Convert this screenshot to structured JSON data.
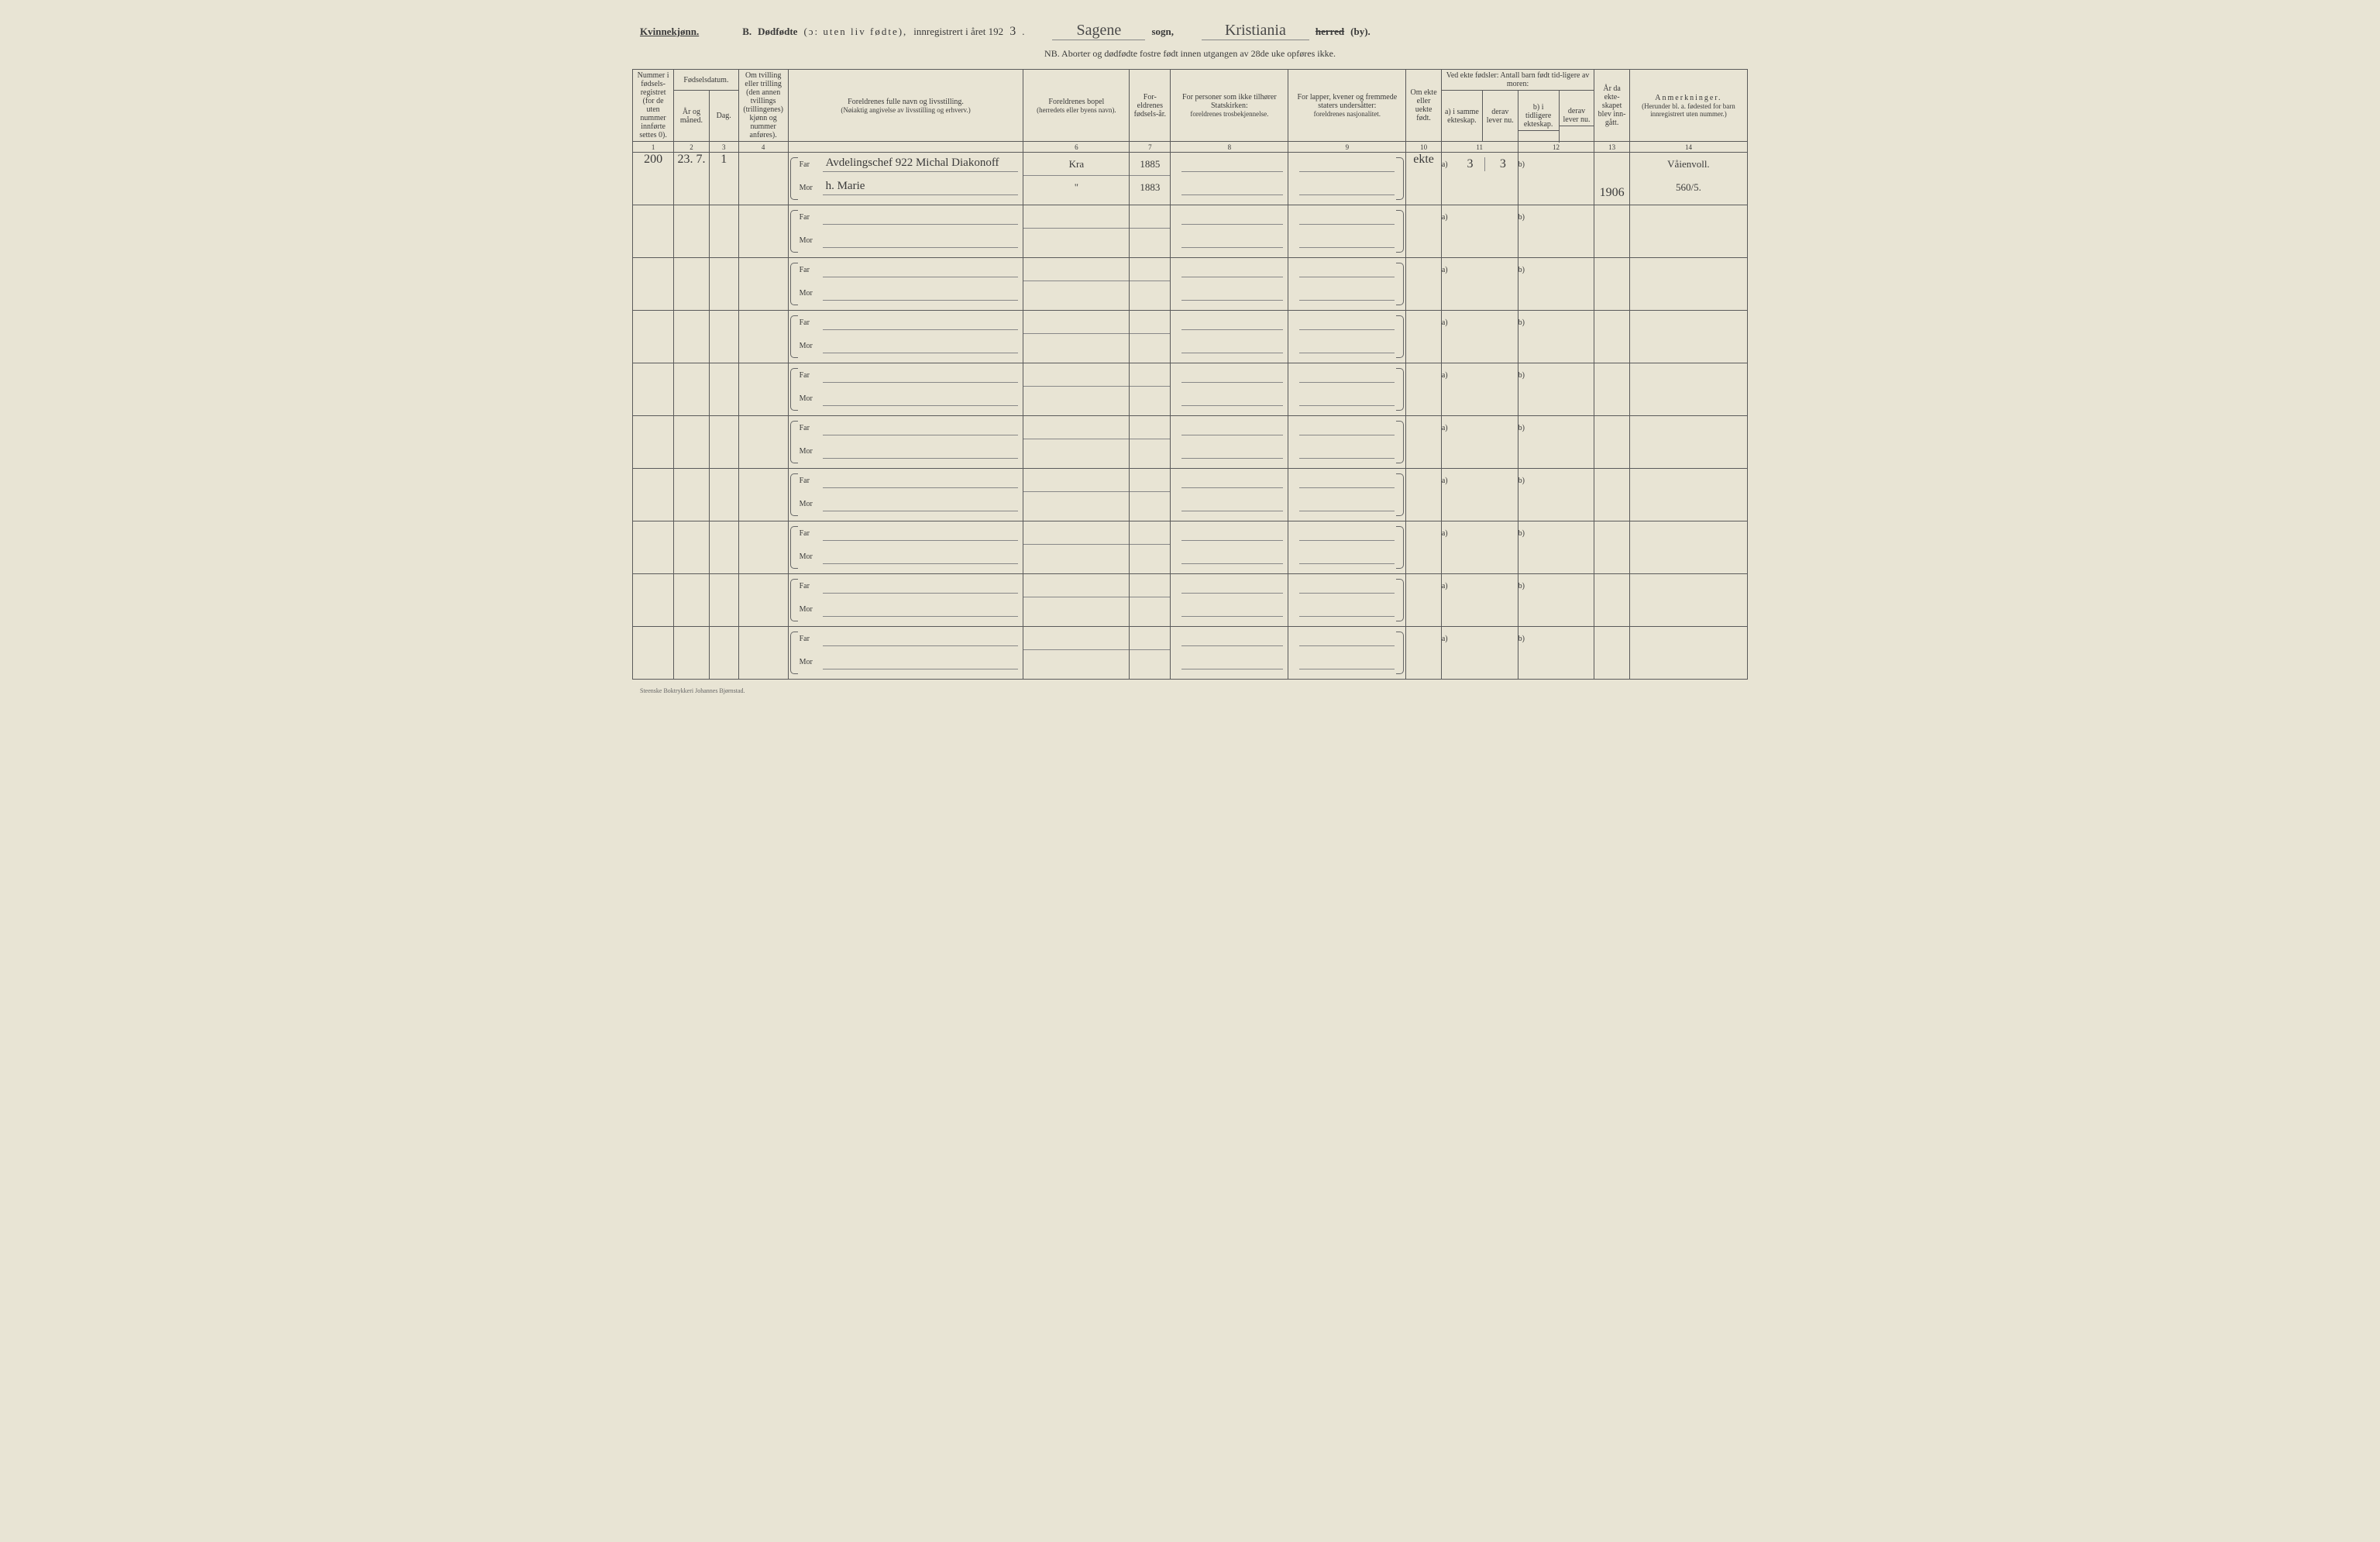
{
  "header": {
    "gender_label": "Kvinnekjønn.",
    "section_letter": "B.",
    "title_main": "Dødfødte",
    "title_paren": "(ɔ: uten liv fødte),",
    "title_reg": "innregistrert i året 192",
    "year_suffix": "3",
    "sogn_value": "Sagene",
    "sogn_label": "sogn,",
    "herred_value": "Kristiania",
    "herred_label_strike": "herred",
    "by_label": "(by).",
    "subheader": "NB. Aborter og dødfødte fostre født innen utgangen av 28de uke opføres ikke."
  },
  "columns": {
    "c1": "Nummer i fødsels-registret (for de uten nummer innførte settes 0).",
    "c2_top": "Fødselsdatum.",
    "c2a": "År og måned.",
    "c2b": "Dag.",
    "c4": "Om tvilling eller trilling (den annen tvillings (trillingenes) kjønn og nummer anføres).",
    "c5_top": "Foreldrenes fulle navn og livsstilling.",
    "c5_sub": "(Nøiaktig angivelse av livsstilling og erhverv.)",
    "c6_top": "Foreldrenes bopel",
    "c6_sub": "(herredets eller byens navn).",
    "c7": "For-eldrenes fødsels-år.",
    "c8_top": "For personer som ikke tilhører Statskirken:",
    "c8_sub": "foreldrenes trosbekjennelse.",
    "c9_top": "For lapper, kvener og fremmede staters undersåtter:",
    "c9_sub": "foreldrenes nasjonalitet.",
    "c10": "Om ekte eller uekte født.",
    "c11_top": "Ved ekte fødsler: Antall barn født tid-ligere av moren:",
    "c11a": "a) i samme ekteskap.",
    "c11b": "b) i tidligere ekteskap.",
    "c12a": "derav lever nu.",
    "c12b": "derav lever nu.",
    "c13": "År da ekte-skapet blev inn-gått.",
    "c14_top": "Anmerkninger.",
    "c14_sub": "(Herunder bl. a. fødested for barn innregistrert uten nummer.)"
  },
  "colnums": [
    "1",
    "2",
    "3",
    "4",
    "",
    "6",
    "7",
    "8",
    "9",
    "10",
    "11",
    "12",
    "13",
    "14"
  ],
  "labels": {
    "far": "Far",
    "mor": "Mor",
    "a": "a)",
    "b": "b)"
  },
  "rows": [
    {
      "num": "200",
      "ym": "23. 7.",
      "day": "1",
      "twin": "",
      "far_name": "Avdelingschef 922 Michal Diakonoff",
      "mor_name": "h. Marie",
      "far_bopel": "Kra",
      "mor_bopel": "\"",
      "far_year": "1885",
      "mor_year": "1883",
      "c8": "",
      "c9": "",
      "ekte": "ekte",
      "a_val": "3",
      "a_lev": "3",
      "b_val": "",
      "b_lev": "",
      "year_m": "1906",
      "anm_top": "Våienvoll.",
      "anm_bot": "560/5."
    },
    {},
    {},
    {},
    {},
    {},
    {},
    {},
    {},
    {}
  ],
  "footer": "Steenske Boktrykkeri Johannes Bjørnstad."
}
